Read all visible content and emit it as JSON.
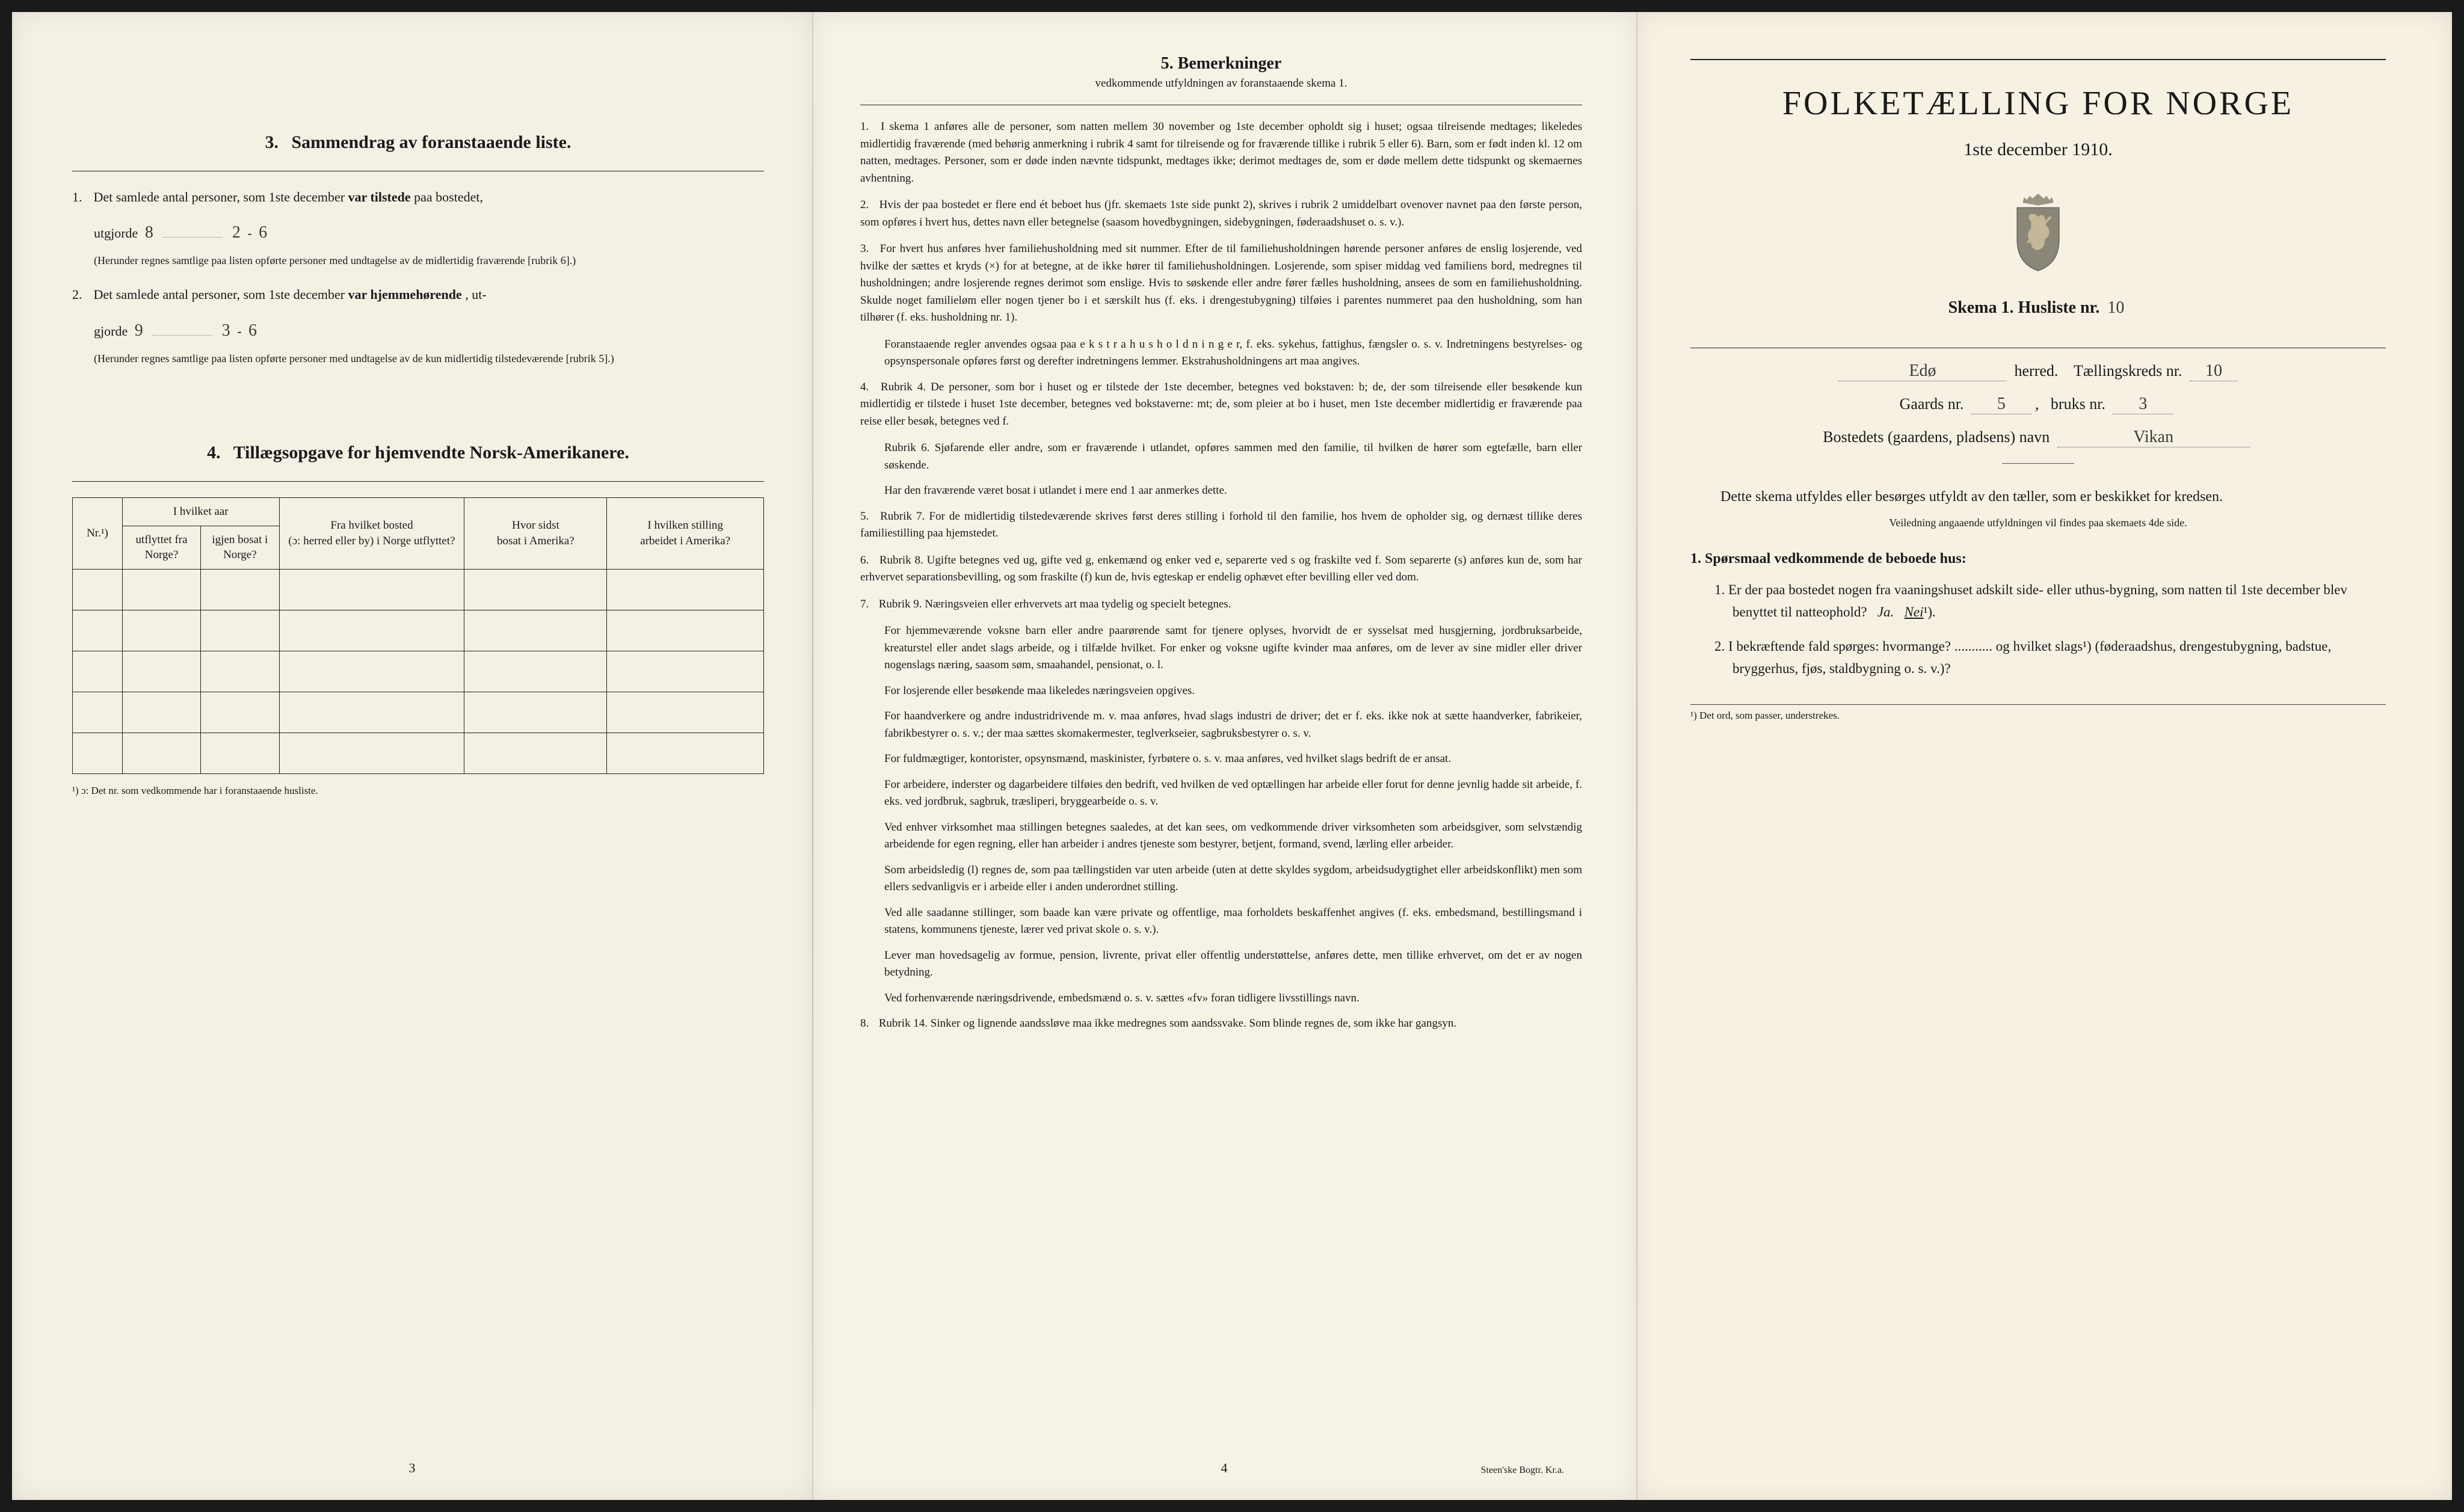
{
  "page1": {
    "section3": {
      "number": "3.",
      "title": "Sammendrag av foranstaaende liste.",
      "item1_lead": "1.",
      "item1_text_a": "Det samlede antal personer, som 1ste december ",
      "item1_text_bold": "var tilstede",
      "item1_text_b": " paa bostedet,",
      "item1_utgjorde": "utgjorde",
      "item1_hw1": "8",
      "item1_hw2": "2",
      "item1_hw3": "6",
      "item1_note": "(Herunder regnes samtlige paa listen opførte personer med undtagelse av de midlertidig fraværende [rubrik 6].)",
      "item2_lead": "2.",
      "item2_text_a": "Det samlede antal personer, som 1ste december ",
      "item2_text_bold": "var hjemmehørende",
      "item2_text_b": ", ut-",
      "item2_gjorde": "gjorde",
      "item2_hw1": "9",
      "item2_hw2": "3",
      "item2_hw3": "6",
      "item2_note": "(Herunder regnes samtlige paa listen opførte personer med undtagelse av de kun midlertidig tilstedeværende [rubrik 5].)"
    },
    "section4": {
      "number": "4.",
      "title": "Tillægsopgave for hjemvendte Norsk-Amerikanere.",
      "headers": {
        "c1": "Nr.¹)",
        "c2a": "I hvilket aar",
        "c2b": "utflyttet fra Norge?",
        "c2c": "igjen bosat i Norge?",
        "c3a": "Fra hvilket bosted",
        "c3b": "(ɔ: herred eller by) i Norge utflyttet?",
        "c4a": "Hvor sidst",
        "c4b": "bosat i Amerika?",
        "c5a": "I hvilken stilling",
        "c5b": "arbeidet i Amerika?"
      },
      "footnote": "¹) ɔ: Det nr. som vedkommende har i foranstaaende husliste."
    },
    "page_num": "3"
  },
  "page2": {
    "title_num": "5.",
    "title": "Bemerkninger",
    "subtitle": "vedkommende utfyldningen av foranstaaende skema 1.",
    "blocks": [
      {
        "n": "1.",
        "text": "I skema 1 anføres alle de personer, som natten mellem 30 november og 1ste december opholdt sig i huset; ogsaa tilreisende medtages; likeledes midlertidig fraværende (med behørig anmerkning i rubrik 4 samt for tilreisende og for fraværende tillike i rubrik 5 eller 6). Barn, som er født inden kl. 12 om natten, medtages. Personer, som er døde inden nævnte tidspunkt, medtages ikke; derimot medtages de, som er døde mellem dette tidspunkt og skemaernes avhentning."
      },
      {
        "n": "2.",
        "text": "Hvis der paa bostedet er flere end ét beboet hus (jfr. skemaets 1ste side punkt 2), skrives i rubrik 2 umiddelbart ovenover navnet paa den første person, som opføres i hvert hus, dettes navn eller betegnelse (saasom hovedbygningen, sidebygningen, føderaadshuset o. s. v.)."
      },
      {
        "n": "3.",
        "text": "For hvert hus anføres hver familiehusholdning med sit nummer. Efter de til familiehusholdningen hørende personer anføres de enslig losjerende, ved hvilke der sættes et kryds (×) for at betegne, at de ikke hører til familiehusholdningen. Losjerende, som spiser middag ved familiens bord, medregnes til husholdningen; andre losjerende regnes derimot som enslige. Hvis to søskende eller andre fører fælles husholdning, ansees de som en familiehusholdning. Skulde noget familieløm eller nogen tjener bo i et særskilt hus (f. eks. i drengestubygning) tilføies i parentes nummeret paa den husholdning, som han tilhører (f. eks. husholdning nr. 1)."
      }
    ],
    "sub_blocks_3": [
      "Foranstaaende regler anvendes ogsaa paa e k s t r a h u s h o l d n i n g e r, f. eks. sykehus, fattighus, fængsler o. s. v. Indretningens bestyrelses- og opsynspersonale opføres først og derefter indretningens lemmer. Ekstrahusholdningens art maa angives."
    ],
    "blocks2": [
      {
        "n": "4.",
        "text": "Rubrik 4. De personer, som bor i huset og er tilstede der 1ste december, betegnes ved bokstaven: b; de, der som tilreisende eller besøkende kun midlertidig er tilstede i huset 1ste december, betegnes ved bokstaverne: mt; de, som pleier at bo i huset, men 1ste december midlertidig er fraværende paa reise eller besøk, betegnes ved f."
      }
    ],
    "sub_blocks_4": [
      "Rubrik 6. Sjøfarende eller andre, som er fraværende i utlandet, opføres sammen med den familie, til hvilken de hører som egtefælle, barn eller søskende.",
      "Har den fraværende været bosat i utlandet i mere end 1 aar anmerkes dette."
    ],
    "blocks3": [
      {
        "n": "5.",
        "text": "Rubrik 7. For de midlertidig tilstedeværende skrives først deres stilling i forhold til den familie, hos hvem de opholder sig, og dernæst tillike deres familiestilling paa hjemstedet."
      },
      {
        "n": "6.",
        "text": "Rubrik 8. Ugifte betegnes ved ug, gifte ved g, enkemænd og enker ved e, separerte ved s og fraskilte ved f. Som separerte (s) anføres kun de, som har erhvervet separationsbevilling, og som fraskilte (f) kun de, hvis egteskap er endelig ophævet efter bevilling eller ved dom."
      },
      {
        "n": "7.",
        "text": "Rubrik 9. Næringsveien eller erhvervets art maa tydelig og specielt betegnes."
      }
    ],
    "sub_blocks_7": [
      "For hjemmeværende voksne barn eller andre paarørende samt for tjenere oplyses, hvorvidt de er sysselsat med husgjerning, jordbruksarbeide, kreaturstel eller andet slags arbeide, og i tilfælde hvilket. For enker og voksne ugifte kvinder maa anføres, om de lever av sine midler eller driver nogenslags næring, saasom søm, smaahandel, pensionat, o. l.",
      "For losjerende eller besøkende maa likeledes næringsveien opgives.",
      "For haandverkere og andre industridrivende m. v. maa anføres, hvad slags industri de driver; det er f. eks. ikke nok at sætte haandverker, fabrikeier, fabrikbestyrer o. s. v.; der maa sættes skomakermester, teglverkseier, sagbruksbestyrer o. s. v.",
      "For fuldmægtiger, kontorister, opsynsmænd, maskinister, fyrbøtere o. s. v. maa anføres, ved hvilket slags bedrift de er ansat.",
      "For arbeidere, inderster og dagarbeidere tilføies den bedrift, ved hvilken de ved optællingen har arbeide eller forut for denne jevnlig hadde sit arbeide, f. eks. ved jordbruk, sagbruk, træsliperi, bryggearbeide o. s. v.",
      "Ved enhver virksomhet maa stillingen betegnes saaledes, at det kan sees, om vedkommende driver virksomheten som arbeidsgiver, som selvstændig arbeidende for egen regning, eller han arbeider i andres tjeneste som bestyrer, betjent, formand, svend, lærling eller arbeider.",
      "Som arbeidsledig (l) regnes de, som paa tællingstiden var uten arbeide (uten at dette skyldes sygdom, arbeidsudygtighet eller arbeidskonflikt) men som ellers sedvanligvis er i arbeide eller i anden underordnet stilling.",
      "Ved alle saadanne stillinger, som baade kan være private og offentlige, maa forholdets beskaffenhet angives (f. eks. embedsmand, bestillingsmand i statens, kommunens tjeneste, lærer ved privat skole o. s. v.).",
      "Lever man hovedsagelig av formue, pension, livrente, privat eller offentlig understøttelse, anføres dette, men tillike erhvervet, om det er av nogen betydning.",
      "Ved forhenværende næringsdrivende, embedsmænd o. s. v. sættes «fv» foran tidligere livsstillings navn."
    ],
    "blocks4": [
      {
        "n": "8.",
        "text": "Rubrik 14. Sinker og lignende aandssløve maa ikke medregnes som aandssvake. Som blinde regnes de, som ikke har gangsyn."
      }
    ],
    "page_num": "4",
    "printer": "Steen'ske Bogtr. Kr.a."
  },
  "page3": {
    "title": "FOLKETÆLLING FOR NORGE",
    "date": "1ste december 1910.",
    "skema_label": "Skema 1.  Husliste nr.",
    "husliste_nr": "10",
    "herred_hw": "Edø",
    "herred_label": "herred.",
    "kreds_label": "Tællingskreds nr.",
    "kreds_nr": "10",
    "gaards_label": "Gaards nr.",
    "gaards_nr": "5",
    "bruks_label": "bruks nr.",
    "bruks_nr": "3",
    "bosted_label": "Bostedets (gaardens, pladsens) navn",
    "bosted_hw": "Vikan",
    "desc": "Dette skema utfyldes eller besørges utfyldt av den tæller, som er beskikket for kredsen.",
    "desc_small": "Veiledning angaaende utfyldningen vil findes paa skemaets 4de side.",
    "q_title_num": "1.",
    "q_title": "Spørsmaal vedkommende de beboede hus:",
    "q1_num": "1.",
    "q1": "Er der paa bostedet nogen fra vaaningshuset adskilt side- eller uthus-bygning, som natten til 1ste december blev benyttet til natteophold?   Ja.   Nei¹).",
    "q2_num": "2.",
    "q2": "I bekræftende fald spørges: hvormange? ........... og hvilket slags¹) (føderaadshus, drengestubygning, badstue, bryggerhus, fjøs, staldbygning o. s. v.)?",
    "footnote": "¹) Det ord, som passer, understrekes.",
    "crest_colors": {
      "shield": "#8a8678",
      "lion": "#c4b896",
      "crown": "#9b9684"
    }
  }
}
